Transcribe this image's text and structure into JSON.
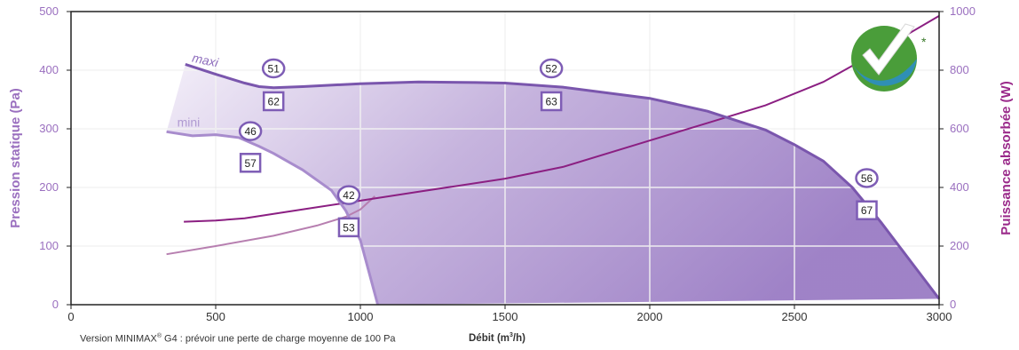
{
  "chart_data": {
    "type": "line",
    "xlabel": "Débit (m3/h)",
    "ylabel_left": "Pression statique (Pa)",
    "ylabel_right": "Puissance absorbée (W)",
    "xlim": [
      0,
      3000
    ],
    "ylim_left": [
      0,
      500
    ],
    "ylim_right": [
      0,
      1000
    ],
    "xticks": [
      "0",
      "500",
      "1000",
      "1500",
      "2000",
      "2500",
      "3000"
    ],
    "yticks_left": [
      "0",
      "100",
      "200",
      "300",
      "400",
      "500"
    ],
    "yticks_right": [
      "0",
      "200",
      "400",
      "600",
      "800",
      "1000"
    ],
    "grid": true,
    "colors": {
      "frame": "#222222",
      "tick_text": "#9a6fbf",
      "ylabel_left": "#9a6fbf",
      "ylabel_right": "#9a2a8a",
      "maxi_curve": "#7a56ad",
      "mini_curve": "#a88ccd",
      "power_maxi": "#8b1f82",
      "power_mini": "#b77fb0",
      "area_dark": "#9a7cc4",
      "area_light": "#ece5f4"
    },
    "series": [
      {
        "name": "maxi",
        "axis": "left",
        "x": [
          395,
          500,
          600,
          650,
          700,
          800,
          1000,
          1200,
          1400,
          1500,
          1700,
          2000,
          2200,
          2400,
          2500,
          2600,
          2700,
          2800,
          2900,
          3000
        ],
        "y": [
          410,
          393,
          378,
          372,
          370,
          372,
          377,
          380,
          379,
          378,
          371,
          352,
          330,
          298,
          273,
          245,
          200,
          140,
          75,
          10
        ]
      },
      {
        "name": "mini",
        "axis": "left",
        "x": [
          330,
          420,
          500,
          580,
          650,
          700,
          800,
          900,
          950,
          1000,
          1030,
          1060
        ],
        "y": [
          295,
          288,
          290,
          285,
          270,
          258,
          230,
          195,
          160,
          110,
          55,
          0
        ]
      },
      {
        "axis": "right",
        "x": [
          390,
          500,
          600,
          700,
          800,
          1000,
          1200,
          1500,
          1700,
          2000,
          2200,
          2400,
          2600,
          2800,
          3000
        ],
        "y": [
          283,
          287,
          295,
          310,
          325,
          355,
          385,
          430,
          470,
          560,
          620,
          680,
          760,
          870,
          985
        ]
      },
      {
        "axis": "right",
        "x": [
          330,
          500,
          700,
          850,
          950,
          1000,
          1050
        ],
        "y": [
          172,
          200,
          235,
          270,
          300,
          325,
          370
        ]
      }
    ],
    "circle_labels": [
      {
        "text": "51",
        "x": 700,
        "y": 403
      },
      {
        "text": "52",
        "x": 1660,
        "y": 403
      },
      {
        "text": "46",
        "x": 620,
        "y": 296
      },
      {
        "text": "42",
        "x": 960,
        "y": 187
      },
      {
        "text": "56",
        "x": 2750,
        "y": 216
      }
    ],
    "box_labels": [
      {
        "text": "62",
        "x": 700,
        "y": 347
      },
      {
        "text": "63",
        "x": 1660,
        "y": 347
      },
      {
        "text": "57",
        "x": 620,
        "y": 242
      },
      {
        "text": "53",
        "x": 960,
        "y": 132
      },
      {
        "text": "67",
        "x": 2750,
        "y": 161
      }
    ]
  },
  "footnote": {
    "prefix": "Version MINIMAX",
    "sup": "®",
    "suffix": " G4 : prévoir une perte de charge moyenne de 100 Pa"
  },
  "xlabel_parts": {
    "prefix": "Débit (m",
    "sup": "3",
    "suffix": "/h)"
  },
  "badge": {
    "icon": "checkmark-badge-icon",
    "asterisk": "*",
    "colors": [
      "#4a9d3a",
      "#2f8fb5",
      "#ffffff"
    ]
  }
}
